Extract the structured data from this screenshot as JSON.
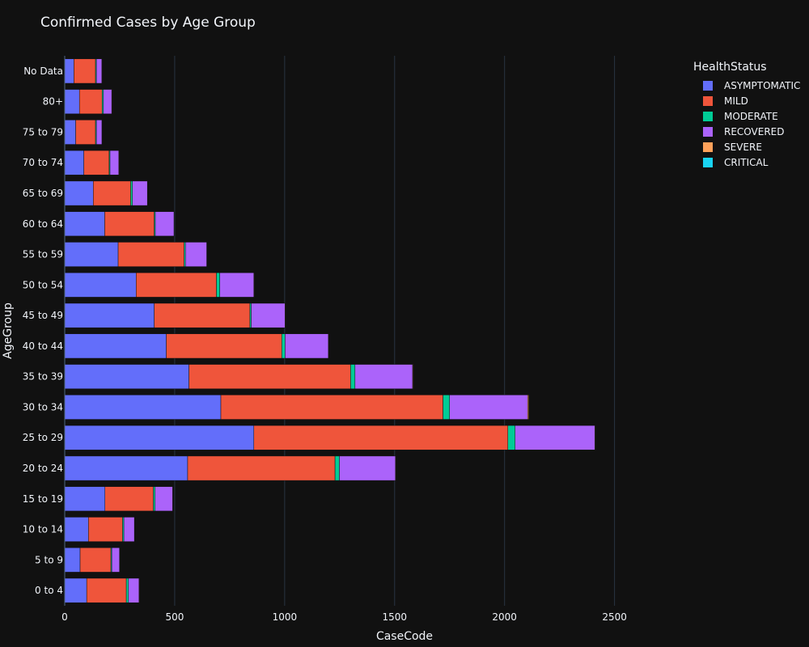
{
  "chart_data": {
    "type": "bar",
    "orientation": "horizontal",
    "barmode": "stack",
    "title": "Confirmed Cases by Age Group",
    "xlabel": "CaseCode",
    "ylabel": "AgeGroup",
    "xlim": [
      0,
      3090
    ],
    "xticks": [
      0,
      500,
      1000,
      1500,
      2000,
      2500
    ],
    "xtick_labels": [
      "0",
      "500",
      "1000",
      "1500",
      "2000",
      "2500"
    ],
    "grid": true,
    "legend_title": "HealthStatus",
    "legend_position": "top-right",
    "categories": [
      "0 to 4",
      "5 to 9",
      "10 to 14",
      "15 to 19",
      "20 to 24",
      "25 to 29",
      "30 to 34",
      "35 to 39",
      "40 to 44",
      "45 to 49",
      "50 to 54",
      "55 to 59",
      "60 to 64",
      "65 to 69",
      "70 to 74",
      "75 to 79",
      "80+",
      "No Data"
    ],
    "series": [
      {
        "name": "ASYMPTOMATIC",
        "color": "#636efa",
        "values": [
          100,
          70,
          108,
          183,
          559,
          860,
          710,
          565,
          462,
          407,
          325,
          243,
          182,
          130,
          87,
          50,
          67,
          42
        ]
      },
      {
        "name": "MILD",
        "color": "#ef553b",
        "values": [
          180,
          140,
          155,
          220,
          670,
          1155,
          1010,
          735,
          525,
          435,
          365,
          300,
          225,
          170,
          115,
          90,
          103,
          98
        ]
      },
      {
        "name": "MODERATE",
        "color": "#00cc96",
        "values": [
          10,
          4,
          6,
          8,
          20,
          33,
          30,
          20,
          15,
          6,
          15,
          6,
          5,
          8,
          4,
          4,
          6,
          4
        ]
      },
      {
        "name": "RECOVERED",
        "color": "#ab63fa",
        "values": [
          48,
          35,
          48,
          80,
          255,
          363,
          355,
          262,
          197,
          154,
          155,
          97,
          85,
          68,
          40,
          25,
          38,
          25
        ]
      },
      {
        "name": "SEVERE",
        "color": "#ffa15a",
        "values": [
          1,
          0,
          1,
          1,
          1,
          2,
          5,
          2,
          1,
          1,
          1,
          1,
          1,
          1,
          1,
          0,
          2,
          1
        ]
      },
      {
        "name": "CRITICAL",
        "color": "#19d3f3",
        "values": [
          0,
          0,
          0,
          0,
          0,
          1,
          1,
          0,
          0,
          0,
          0,
          0,
          0,
          0,
          0,
          0,
          0,
          0
        ]
      }
    ]
  }
}
